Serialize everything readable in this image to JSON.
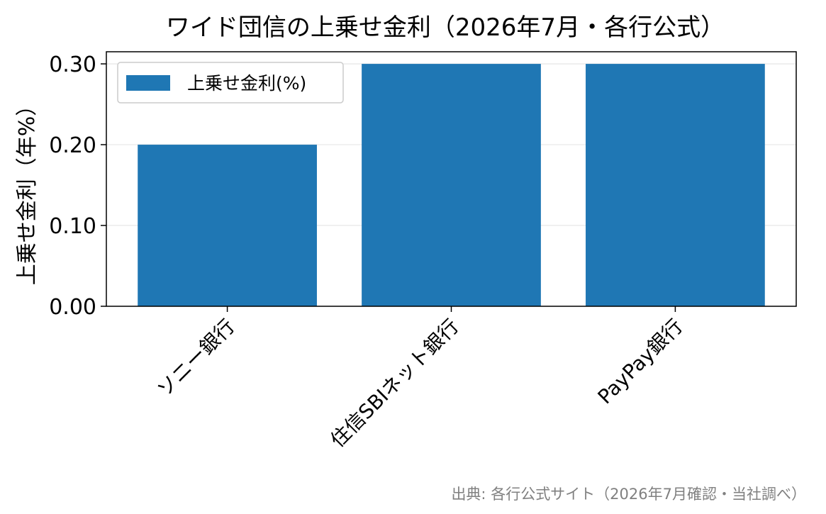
{
  "chart_data": {
    "type": "bar",
    "title": "ワイド団信の上乗せ金利（2026年7月・各行公式）",
    "xlabel": "",
    "ylabel": "上乗せ金利（年%）",
    "categories": [
      "ソニー銀行",
      "住信SBIネット銀行",
      "PayPay銀行"
    ],
    "series": [
      {
        "name": "上乗せ金利(%)",
        "values": [
          0.2,
          0.3,
          0.3
        ]
      }
    ],
    "ylim": [
      0,
      0.315
    ],
    "yticks": [
      0.0,
      0.1,
      0.2,
      0.3
    ],
    "ytick_labels": [
      "0.00",
      "0.10",
      "0.20",
      "0.30"
    ],
    "grid": "horizontal",
    "legend_position": "top-left",
    "bar_color": "#1f77b4",
    "source": "出典: 各行公式サイト（2026年7月確認・当社調べ）"
  }
}
